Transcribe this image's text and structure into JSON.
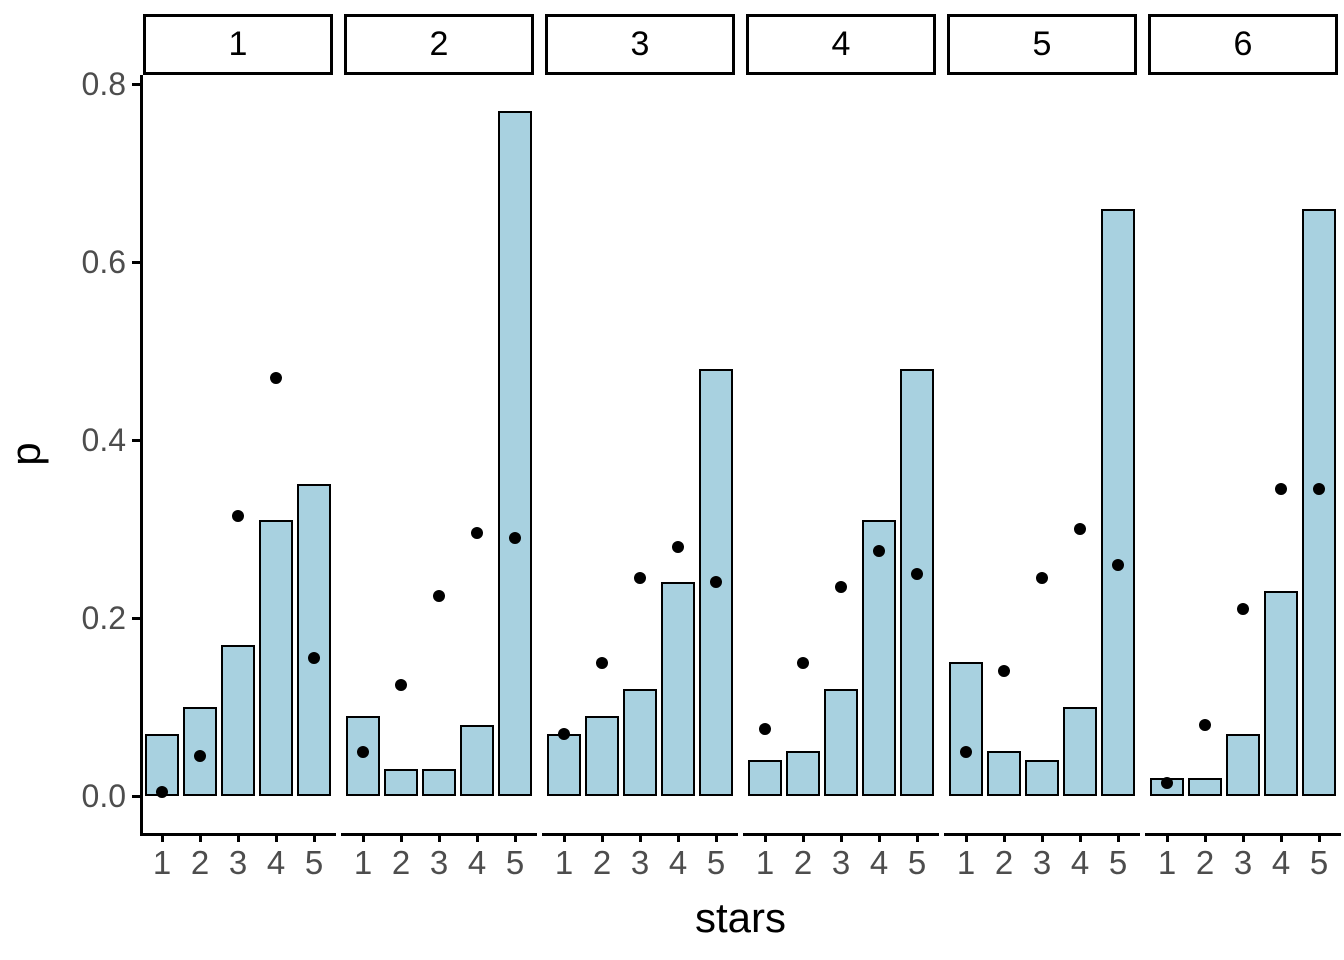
{
  "chart_data": {
    "type": "bar",
    "title": "",
    "xlabel": "stars",
    "ylabel": "p",
    "x_categories": [
      "1",
      "2",
      "3",
      "4",
      "5"
    ],
    "y_tick_values": [
      0.0,
      0.2,
      0.4,
      0.6,
      0.8
    ],
    "y_tick_labels": [
      "0.0",
      "0.2",
      "0.4",
      "0.6",
      "0.8"
    ],
    "ylim": [
      0,
      0.8
    ],
    "grid": "off",
    "legend_position": "none",
    "facet_variable_values": [
      "1",
      "2",
      "3",
      "4",
      "5",
      "6"
    ],
    "facets": [
      {
        "label": "1",
        "bar_values": [
          0.07,
          0.1,
          0.17,
          0.31,
          0.35
        ],
        "point_values": [
          0.005,
          0.045,
          0.315,
          0.47,
          0.155
        ]
      },
      {
        "label": "2",
        "bar_values": [
          0.09,
          0.03,
          0.03,
          0.08,
          0.77
        ],
        "point_values": [
          0.05,
          0.125,
          0.225,
          0.295,
          0.29
        ]
      },
      {
        "label": "3",
        "bar_values": [
          0.07,
          0.09,
          0.12,
          0.24,
          0.48
        ],
        "point_values": [
          0.07,
          0.15,
          0.245,
          0.28,
          0.24
        ]
      },
      {
        "label": "4",
        "bar_values": [
          0.04,
          0.05,
          0.12,
          0.31,
          0.48
        ],
        "point_values": [
          0.075,
          0.15,
          0.235,
          0.275,
          0.25
        ]
      },
      {
        "label": "5",
        "bar_values": [
          0.15,
          0.05,
          0.04,
          0.1,
          0.66
        ],
        "point_values": [
          0.05,
          0.14,
          0.245,
          0.3,
          0.26
        ]
      },
      {
        "label": "6",
        "bar_values": [
          0.02,
          0.02,
          0.07,
          0.23,
          0.66
        ],
        "point_values": [
          0.015,
          0.08,
          0.21,
          0.345,
          0.345
        ]
      }
    ],
    "colors": {
      "bar_fill": "#A8D1E0",
      "bar_border": "#000000",
      "point": "#000000",
      "axis_text": "#4d4d4d",
      "axis_line": "#000000",
      "strip_bg": "#ffffff",
      "strip_border": "#000000",
      "background": "#ffffff"
    }
  }
}
